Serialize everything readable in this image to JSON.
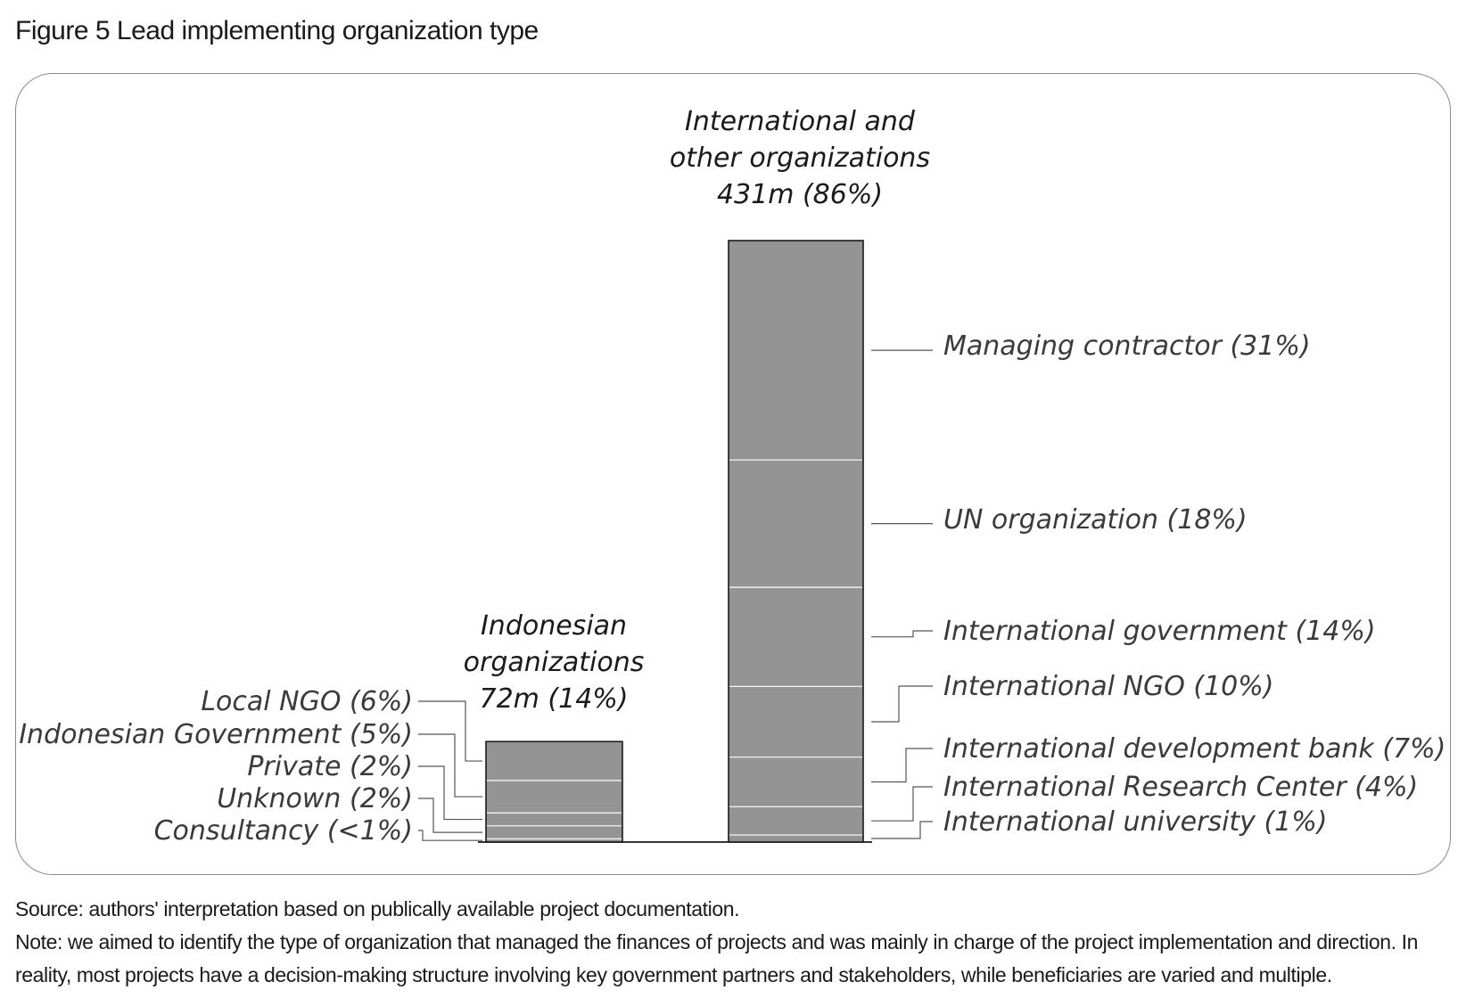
{
  "title": "Figure 5 Lead implementing organization type",
  "source": "Source: authors' interpretation based on publically available project documentation.",
  "note": "Note: we aimed to identify the type of organization that managed the finances of projects and was mainly in charge of the project implementation and direction. In reality, most projects have a decision-making structure involving key government partners and stakeholders, while beneficiaries are varied and multiple.",
  "chart_data": {
    "type": "bar",
    "stacked": true,
    "unit": "m",
    "colors": {
      "bar": "#949494",
      "segment_divider": "#ffffff",
      "outline": "#1a1a1a",
      "leader": "#555555",
      "text": "#3a3a3a"
    },
    "grid": false,
    "bars": [
      {
        "id": "indonesian",
        "label_lines": [
          "Indonesian",
          "organizations",
          "72m (14%)"
        ],
        "total": 72,
        "share": 14,
        "label_side": "left",
        "segments": [
          {
            "name": "Local NGO",
            "label": "Local NGO (6%)",
            "share": 6
          },
          {
            "name": "Indonesian Government",
            "label": "Indonesian Government (5%)",
            "share": 5
          },
          {
            "name": "Private",
            "label": "Private (2%)",
            "share": 2
          },
          {
            "name": "Unknown",
            "label": "Unknown (2%)",
            "share": 2
          },
          {
            "name": "Consultancy",
            "label": "Consultancy (<1%)",
            "share": 0.5
          }
        ]
      },
      {
        "id": "international",
        "label_lines": [
          "International and",
          "other organizations",
          "431m (86%)"
        ],
        "total": 431,
        "share": 86,
        "label_side": "right",
        "segments": [
          {
            "name": "Managing contractor",
            "label": "Managing contractor (31%)",
            "share": 31
          },
          {
            "name": "UN organization",
            "label": "UN organization (18%)",
            "share": 18
          },
          {
            "name": "International government",
            "label": "International government (14%)",
            "share": 14
          },
          {
            "name": "International NGO",
            "label": "International NGO (10%)",
            "share": 10
          },
          {
            "name": "International development bank",
            "label": "International development bank (7%)",
            "share": 7
          },
          {
            "name": "International Research Center",
            "label": "International Research Center (4%)",
            "share": 4
          },
          {
            "name": "International university",
            "label": "International university (1%)",
            "share": 1
          }
        ]
      }
    ]
  }
}
